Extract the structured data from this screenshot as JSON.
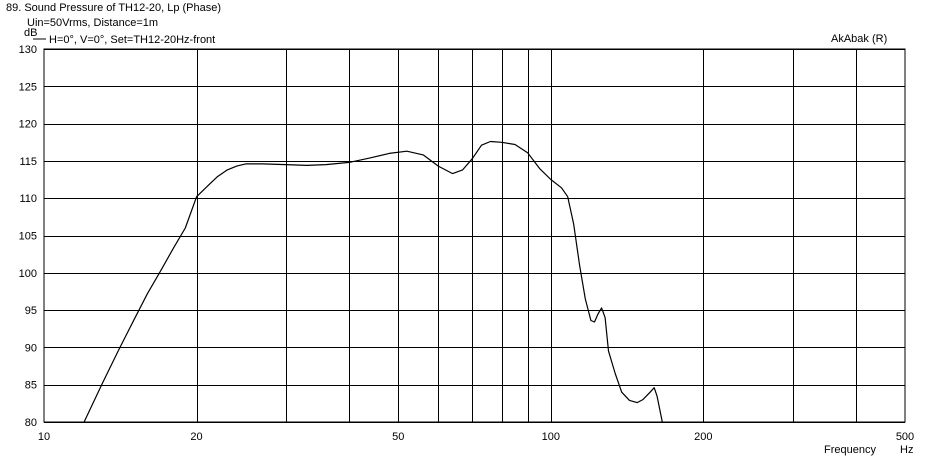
{
  "header": {
    "title": "89. Sound Pressure of TH12-20, Lp (Phase)",
    "conditions": "Uin=50Vrms, Distance=1m",
    "legend_entry": "H=0°, V=0°, Set=TH12-20Hz-front",
    "software": "AkAbak (R)"
  },
  "chart_data": {
    "type": "line",
    "title": "89. Sound Pressure of TH12-20, Lp (Phase)",
    "xlabel": "Frequency",
    "xunit": "Hz",
    "ylabel": "dB",
    "xscale": "log",
    "xlim": [
      10,
      500
    ],
    "ylim": [
      80,
      130
    ],
    "grid": true,
    "legend_position": "top-left",
    "x_tick_labels": [
      "10",
      "20",
      "50",
      "100",
      "200",
      "500"
    ],
    "x_tick_values": [
      10,
      20,
      50,
      100,
      200,
      500
    ],
    "x_grid_values": [
      20,
      30,
      40,
      50,
      60,
      70,
      80,
      90,
      100,
      200,
      300,
      400
    ],
    "y_ticks": [
      80,
      85,
      90,
      95,
      100,
      105,
      110,
      115,
      120,
      125,
      130
    ],
    "series": [
      {
        "name": "H=0°, V=0°, Set=TH12-20Hz-front",
        "color": "#000000",
        "points": [
          [
            12.0,
            80.0
          ],
          [
            13.0,
            85.0
          ],
          [
            14.0,
            89.5
          ],
          [
            15.0,
            93.5
          ],
          [
            16.0,
            97.2
          ],
          [
            17.0,
            100.3
          ],
          [
            18.0,
            103.3
          ],
          [
            19.0,
            106.0
          ],
          [
            20.0,
            110.2
          ],
          [
            21.0,
            111.6
          ],
          [
            22.0,
            112.9
          ],
          [
            23.0,
            113.8
          ],
          [
            24.0,
            114.3
          ],
          [
            25.0,
            114.6
          ],
          [
            27.0,
            114.6
          ],
          [
            30.0,
            114.5
          ],
          [
            33.0,
            114.4
          ],
          [
            36.0,
            114.5
          ],
          [
            40.0,
            114.8
          ],
          [
            44.0,
            115.4
          ],
          [
            48.0,
            116.0
          ],
          [
            52.0,
            116.3
          ],
          [
            56.0,
            115.8
          ],
          [
            60.0,
            114.3
          ],
          [
            64.0,
            113.3
          ],
          [
            67.0,
            113.8
          ],
          [
            70.0,
            115.3
          ],
          [
            73.0,
            117.1
          ],
          [
            76.0,
            117.6
          ],
          [
            80.0,
            117.5
          ],
          [
            85.0,
            117.2
          ],
          [
            90.0,
            116.1
          ],
          [
            95.0,
            114.0
          ],
          [
            100.0,
            112.5
          ],
          [
            105.0,
            111.4
          ],
          [
            108.0,
            110.2
          ],
          [
            111.0,
            106.5
          ],
          [
            114.0,
            101.0
          ],
          [
            117.0,
            96.5
          ],
          [
            120.0,
            93.6
          ],
          [
            122.0,
            93.4
          ],
          [
            124.0,
            94.5
          ],
          [
            126.0,
            95.3
          ],
          [
            128.0,
            94.0
          ],
          [
            130.0,
            89.5
          ],
          [
            134.0,
            86.5
          ],
          [
            138.0,
            84.0
          ],
          [
            143.0,
            82.9
          ],
          [
            148.0,
            82.6
          ],
          [
            152.0,
            83.0
          ],
          [
            157.0,
            84.0
          ],
          [
            160.0,
            84.6
          ],
          [
            162.0,
            83.5
          ],
          [
            166.0,
            80.0
          ]
        ]
      }
    ]
  }
}
